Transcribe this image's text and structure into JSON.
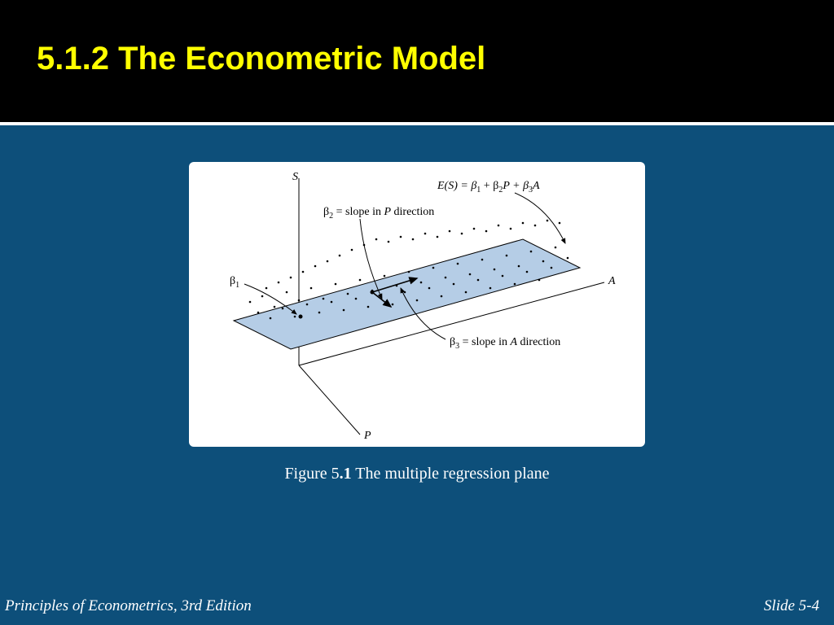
{
  "header": {
    "title": "5.1.2 The Econometric Model"
  },
  "figure": {
    "axes": {
      "S": "S",
      "P": "P",
      "A": "A"
    },
    "equation_parts": {
      "pre": "E(S) = β",
      "s1": "1",
      "mid1": " + β",
      "s2": "2",
      "mid2": "P + β",
      "s3": "3",
      "post": "A"
    },
    "labels": {
      "beta1": "β",
      "beta1_sub": "1",
      "beta2_pre": "β",
      "beta2_sub": "2",
      "beta2_post": " = slope in ",
      "beta2_var": "P",
      "beta2_dir": " direction",
      "beta3_pre": "β",
      "beta3_sub": "3",
      "beta3_post": " = slope in ",
      "beta3_var": "A",
      "beta3_dir": " direction"
    },
    "plane_color": "#b5cde6",
    "plane_stroke": "#000000",
    "scatter_points": [
      [
        75,
        172
      ],
      [
        90,
        165
      ],
      [
        105,
        178
      ],
      [
        120,
        160
      ],
      [
        135,
        170
      ],
      [
        150,
        155
      ],
      [
        165,
        168
      ],
      [
        180,
        150
      ],
      [
        195,
        162
      ],
      [
        210,
        145
      ],
      [
        225,
        158
      ],
      [
        240,
        140
      ],
      [
        255,
        152
      ],
      [
        270,
        135
      ],
      [
        285,
        148
      ],
      [
        300,
        130
      ],
      [
        315,
        142
      ],
      [
        330,
        125
      ],
      [
        345,
        138
      ],
      [
        360,
        120
      ],
      [
        375,
        132
      ],
      [
        390,
        115
      ],
      [
        405,
        128
      ],
      [
        420,
        110
      ],
      [
        435,
        122
      ],
      [
        450,
        105
      ],
      [
        465,
        118
      ],
      [
        85,
        185
      ],
      [
        100,
        192
      ],
      [
        115,
        180
      ],
      [
        130,
        190
      ],
      [
        145,
        175
      ],
      [
        160,
        185
      ],
      [
        175,
        172
      ],
      [
        190,
        182
      ],
      [
        205,
        168
      ],
      [
        220,
        178
      ],
      [
        235,
        165
      ],
      [
        250,
        175
      ],
      [
        265,
        160
      ],
      [
        280,
        170
      ],
      [
        295,
        155
      ],
      [
        310,
        165
      ],
      [
        325,
        150
      ],
      [
        340,
        160
      ],
      [
        355,
        145
      ],
      [
        370,
        155
      ],
      [
        385,
        140
      ],
      [
        400,
        150
      ],
      [
        415,
        135
      ],
      [
        430,
        145
      ],
      [
        445,
        130
      ],
      [
        95,
        155
      ],
      [
        110,
        148
      ],
      [
        125,
        142
      ],
      [
        140,
        135
      ],
      [
        155,
        128
      ],
      [
        170,
        122
      ],
      [
        185,
        115
      ],
      [
        200,
        108
      ],
      [
        215,
        102
      ],
      [
        230,
        95
      ],
      [
        245,
        98
      ],
      [
        260,
        92
      ],
      [
        275,
        95
      ],
      [
        290,
        88
      ],
      [
        305,
        92
      ],
      [
        320,
        85
      ],
      [
        335,
        88
      ],
      [
        350,
        82
      ],
      [
        365,
        85
      ],
      [
        380,
        78
      ],
      [
        395,
        82
      ],
      [
        410,
        75
      ],
      [
        425,
        78
      ],
      [
        440,
        72
      ],
      [
        455,
        75
      ]
    ]
  },
  "caption": {
    "pre": "Figure 5",
    "dot": ".1",
    "text": " The multiple regression plane"
  },
  "footer": {
    "left": "Principles of Econometrics, 3rd Edition",
    "right": "Slide 5-4"
  }
}
